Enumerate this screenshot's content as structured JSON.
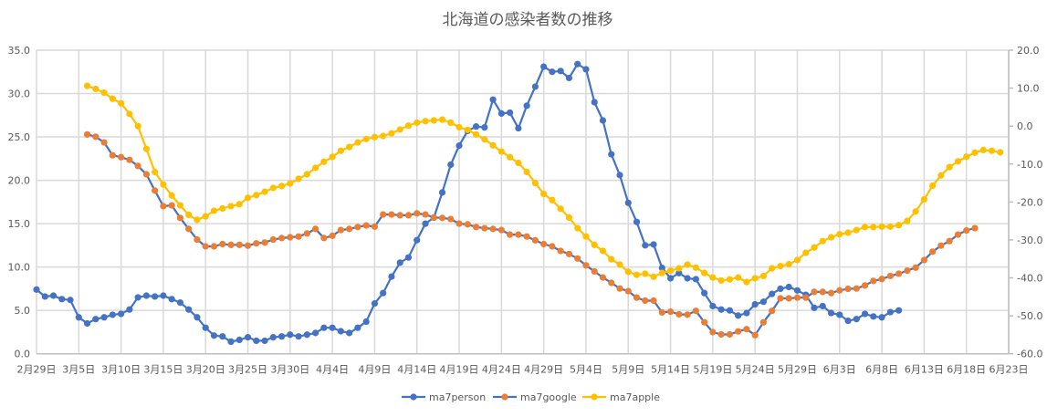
{
  "chart_data": {
    "type": "line",
    "title": "北海道の感染者数の推移",
    "x_ticks": [
      "2月29日",
      "3月5日",
      "3月10日",
      "3月15日",
      "3月20日",
      "3月25日",
      "3月30日",
      "4月4日",
      "4月9日",
      "4月14日",
      "4月19日",
      "4月24日",
      "4月29日",
      "5月4日",
      "5月9日",
      "5月14日",
      "5月19日",
      "5月24日",
      "5月29日",
      "6月3日",
      "6月8日",
      "6月13日",
      "6月18日",
      "6月23日"
    ],
    "x_range": [
      "2月29日",
      "6月23日"
    ],
    "y_left": {
      "range": [
        0,
        35
      ],
      "ticks": [
        "0.0",
        "5.0",
        "10.0",
        "15.0",
        "20.0",
        "25.0",
        "30.0",
        "35.0"
      ]
    },
    "y_right": {
      "range": [
        -60,
        20
      ],
      "ticks": [
        "-60.0",
        "-50.0",
        "-40.0",
        "-30.0",
        "-20.0",
        "-10.0",
        "0.0",
        "10.0",
        "20.0"
      ]
    },
    "grid": true,
    "legend_position": "bottom",
    "series": [
      {
        "name": "ma7person",
        "axis": "left",
        "line_color": "#4472C4",
        "marker_color": "#4472C4",
        "start": "2月29日",
        "values": [
          7.4,
          6.6,
          6.7,
          6.3,
          6.2,
          4.2,
          3.5,
          4.0,
          4.2,
          4.5,
          4.6,
          5.1,
          6.5,
          6.7,
          6.6,
          6.7,
          6.3,
          5.9,
          5.1,
          4.2,
          3.0,
          2.1,
          2.0,
          1.4,
          1.6,
          1.9,
          1.5,
          1.5,
          1.9,
          2.0,
          2.2,
          2.0,
          2.2,
          2.4,
          3.0,
          3.0,
          2.6,
          2.4,
          3.0,
          3.7,
          5.8,
          7.0,
          8.9,
          10.5,
          11.1,
          13.1,
          15.0,
          15.7,
          18.6,
          21.8,
          24.0,
          25.7,
          26.2,
          26.1,
          29.3,
          27.7,
          27.8,
          26.0,
          28.6,
          30.8,
          33.1,
          32.5,
          32.6,
          31.8,
          33.4,
          32.8,
          29.0,
          26.9,
          23.0,
          20.6,
          17.4,
          15.2,
          12.5,
          12.6,
          9.9,
          8.7,
          9.3,
          8.7,
          8.6,
          7.0,
          5.5,
          5.1,
          5.0,
          4.4,
          4.7,
          5.7,
          6.0,
          6.9,
          7.5,
          7.7,
          7.3,
          6.8,
          5.3,
          5.5,
          4.7,
          4.5,
          3.8,
          4.0,
          4.6,
          4.3,
          4.2,
          4.8,
          5.0
        ]
      },
      {
        "name": "ma7google",
        "axis": "right",
        "line_color": "#4472C4",
        "marker_color": "#ED7D31",
        "start": "3月6日",
        "values": [
          -2.2,
          -2.8,
          -4.3,
          -7.7,
          -8.2,
          -8.9,
          -10.5,
          -12.7,
          -17.0,
          -21.1,
          -20.9,
          -24.2,
          -27.1,
          -29.9,
          -31.7,
          -31.7,
          -31.1,
          -31.3,
          -31.3,
          -31.5,
          -30.9,
          -30.7,
          -29.9,
          -29.5,
          -29.3,
          -29.1,
          -28.3,
          -27.1,
          -29.5,
          -28.9,
          -27.4,
          -27.1,
          -26.6,
          -26.2,
          -26.5,
          -23.3,
          -23.3,
          -23.5,
          -23.5,
          -23.0,
          -23.3,
          -24.1,
          -24.2,
          -24.5,
          -25.7,
          -25.9,
          -26.6,
          -26.9,
          -27.1,
          -27.4,
          -28.6,
          -28.6,
          -29.1,
          -30.1,
          -31.1,
          -31.7,
          -32.9,
          -33.7,
          -34.9,
          -36.7,
          -38.3,
          -39.9,
          -41.3,
          -42.8,
          -43.5,
          -45.2,
          -46.0,
          -46.0,
          -49.1,
          -48.9,
          -49.6,
          -49.7,
          -48.7,
          -51.7,
          -54.3,
          -54.9,
          -54.9,
          -54.1,
          -53.5,
          -55.1,
          -51.7,
          -48.7,
          -45.4,
          -45.4,
          -45.2,
          -45.2,
          -43.7,
          -43.7,
          -44.0,
          -43.3,
          -42.9,
          -42.8,
          -42.0,
          -40.8,
          -40.3,
          -39.5,
          -38.9,
          -38.1,
          -37.3,
          -35.3,
          -33.1,
          -31.5,
          -30.3,
          -28.6,
          -27.5,
          -26.9
        ]
      },
      {
        "name": "ma7apple",
        "axis": "right",
        "line_color": "#FFC000",
        "marker_color": "#FFC000",
        "start": "3月6日",
        "values": [
          10.6,
          9.8,
          8.8,
          7.2,
          6.0,
          3.2,
          0.0,
          -6.0,
          -12.1,
          -15.4,
          -18.3,
          -20.9,
          -23.4,
          -24.7,
          -23.8,
          -22.3,
          -21.7,
          -21.1,
          -20.6,
          -18.9,
          -18.2,
          -17.3,
          -16.3,
          -15.8,
          -15.1,
          -13.9,
          -12.7,
          -11.0,
          -9.4,
          -8.1,
          -6.5,
          -5.5,
          -4.3,
          -3.4,
          -2.9,
          -2.6,
          -1.9,
          -0.9,
          0.1,
          0.9,
          1.3,
          1.5,
          1.7,
          0.9,
          -0.3,
          -1.0,
          -2.2,
          -3.5,
          -5.1,
          -6.7,
          -8.2,
          -9.7,
          -12.1,
          -15.0,
          -17.9,
          -19.5,
          -21.8,
          -24.1,
          -26.9,
          -29.1,
          -31.3,
          -32.9,
          -35.1,
          -36.5,
          -38.4,
          -39.2,
          -38.9,
          -39.7,
          -38.7,
          -38.1,
          -37.5,
          -36.5,
          -37.3,
          -38.7,
          -39.9,
          -40.7,
          -40.4,
          -39.9,
          -41.1,
          -40.1,
          -39.5,
          -37.5,
          -36.9,
          -36.4,
          -35.3,
          -33.4,
          -32.0,
          -30.3,
          -29.3,
          -28.5,
          -28.1,
          -27.4,
          -26.6,
          -26.6,
          -26.5,
          -26.5,
          -26.1,
          -25.0,
          -22.5,
          -19.3,
          -15.7,
          -13.0,
          -10.8,
          -9.3,
          -8.1,
          -7.0,
          -6.3,
          -6.5,
          -6.9
        ]
      }
    ]
  }
}
